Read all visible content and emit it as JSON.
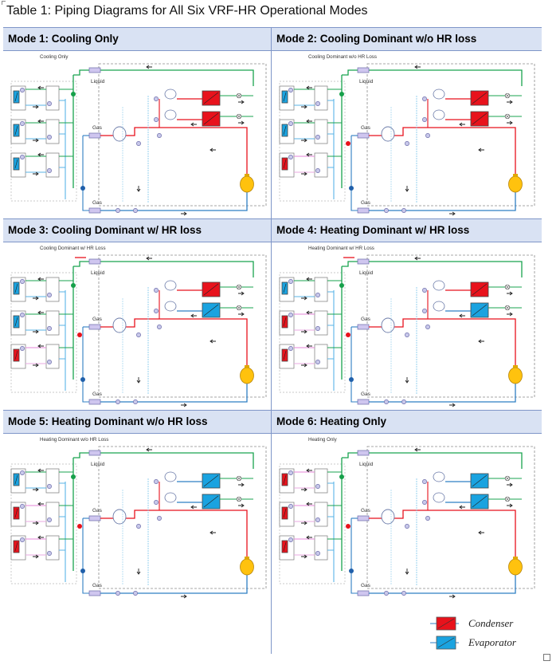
{
  "title": "Table 1: Piping Diagrams for All Six VRF-HR Operational Modes",
  "modes": [
    {
      "header": "Mode 1: Cooling Only",
      "caption": "Cooling Only",
      "indoor": [
        "evap",
        "evap",
        "evap"
      ],
      "hx": [
        "cond",
        "cond"
      ],
      "hx_fan": [
        false,
        false
      ],
      "loss": false
    },
    {
      "header": "Mode 2: Cooling Dominant w/o HR loss",
      "caption": "Cooling Dominant w/o HR Loss",
      "indoor": [
        "evap",
        "evap",
        "cond"
      ],
      "hx": [
        "cond",
        "cond"
      ],
      "hx_fan": [
        false,
        false
      ],
      "loss": false
    },
    {
      "header": "Mode 3: Cooling Dominant w/ HR loss",
      "caption": "Cooling Dominant w/ HR Loss",
      "indoor": [
        "evap",
        "evap",
        "cond"
      ],
      "hx": [
        "cond",
        "evap"
      ],
      "hx_fan": [
        false,
        true
      ],
      "loss": true
    },
    {
      "header": "Mode 4: Heating Dominant w/ HR loss",
      "caption": "Heating Dominant w/ HR Loss",
      "indoor": [
        "evap",
        "cond",
        "cond"
      ],
      "hx": [
        "cond",
        "evap"
      ],
      "hx_fan": [
        false,
        true
      ],
      "loss": true
    },
    {
      "header": "Mode 5: Heating Dominant w/o HR loss",
      "caption": "Heating Dominant w/o HR Loss",
      "indoor": [
        "evap",
        "cond",
        "cond"
      ],
      "hx": [
        "evap",
        "evap"
      ],
      "hx_fan": [
        true,
        true
      ],
      "loss": false
    },
    {
      "header": "Mode 6: Heating Only",
      "caption": "Heating Only",
      "indoor": [
        "cond",
        "cond",
        "cond"
      ],
      "hx": [
        "evap",
        "evap"
      ],
      "hx_fan": [
        true,
        true
      ],
      "loss": false
    }
  ],
  "labels": {
    "liquid": "Liquid",
    "gas": "Gas"
  },
  "legend": {
    "condenser": "Condenser",
    "evaporator": "Evaporator"
  },
  "colors": {
    "condenser": "#e8121c",
    "evaporator": "#1aa3e0",
    "liquid_line": "#19a34f",
    "hot_gas_line": "#e8121c",
    "suction_line": "#2f7fc4",
    "header_fill": "#d9e2f3",
    "grid_line": "#7f96c8",
    "compressor": "#ffc20e"
  },
  "icons": {
    "condenser": "red-coil-block",
    "evaporator": "blue-coil-block",
    "compressor": "yellow-oval"
  }
}
